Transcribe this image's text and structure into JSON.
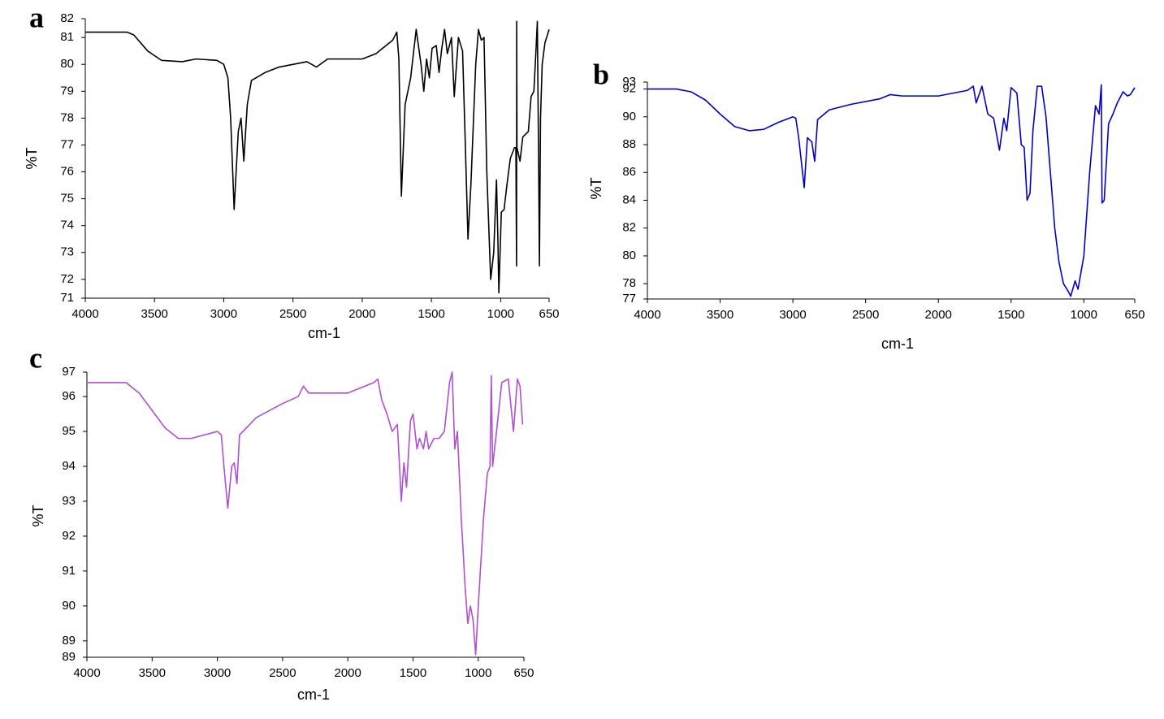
{
  "chart_data": [
    {
      "type": "line",
      "label": "a",
      "ylabel": "%T",
      "xlabel": "cm-1",
      "color": "#000000",
      "xlim": [
        4000,
        650
      ],
      "xticks": [
        4000,
        3500,
        3000,
        2500,
        2000,
        1500,
        1000,
        650
      ],
      "ylim": [
        71.3,
        81.7
      ],
      "yticks": [
        {
          "value": 71.3,
          "label": "71"
        },
        72,
        73,
        74,
        75,
        76,
        77,
        78,
        79,
        80,
        81,
        {
          "value": 81.7,
          "label": "82"
        }
      ],
      "x": [
        4000,
        3800,
        3700,
        3650,
        3550,
        3450,
        3300,
        3200,
        3050,
        3000,
        2970,
        2950,
        2925,
        2895,
        2875,
        2855,
        2830,
        2800,
        2700,
        2600,
        2400,
        2330,
        2250,
        2000,
        1900,
        1780,
        1750,
        1735,
        1717,
        1690,
        1650,
        1610,
        1575,
        1555,
        1535,
        1515,
        1495,
        1465,
        1445,
        1425,
        1405,
        1385,
        1355,
        1335,
        1305,
        1275,
        1255,
        1236,
        1215,
        1180,
        1160,
        1140,
        1120,
        1100,
        1072,
        1050,
        1030,
        1020,
        1013,
        995,
        975,
        955,
        930,
        900,
        890,
        885,
        884,
        882,
        860,
        840,
        800,
        780,
        760,
        745,
        735,
        725,
        720,
        712,
        700,
        680,
        650
      ],
      "values": [
        81.2,
        81.2,
        81.2,
        81.1,
        80.5,
        80.15,
        80.1,
        80.2,
        80.15,
        80.0,
        79.5,
        78.0,
        74.6,
        77.5,
        78.0,
        76.4,
        78.5,
        79.4,
        79.7,
        79.9,
        80.1,
        79.9,
        80.2,
        80.2,
        80.4,
        80.9,
        81.2,
        80.2,
        75.1,
        78.5,
        79.5,
        81.3,
        80.0,
        79.0,
        80.2,
        79.5,
        80.6,
        80.7,
        79.7,
        80.6,
        81.3,
        80.4,
        81.0,
        78.8,
        81.0,
        80.5,
        77.0,
        73.5,
        75.5,
        80.0,
        81.3,
        80.9,
        81.0,
        76.0,
        72.0,
        73.0,
        75.7,
        73.5,
        71.5,
        74.5,
        74.6,
        75.5,
        76.5,
        76.9,
        76.9,
        72.5,
        81.6,
        76.9,
        76.4,
        77.3,
        77.5,
        78.8,
        79.0,
        80.5,
        81.6,
        76.0,
        72.5,
        78.0,
        80.0,
        80.8,
        81.3
      ]
    },
    {
      "type": "line",
      "label": "b",
      "ylabel": "%T",
      "xlabel": "cm-1",
      "color": "#0000cc",
      "xlim": [
        4000,
        650
      ],
      "xticks": [
        4000,
        3500,
        3000,
        2500,
        2000,
        1500,
        1000,
        650
      ],
      "ylim": [
        76.9,
        92.5
      ],
      "yticks": [
        {
          "value": 76.9,
          "label": "77"
        },
        78,
        80,
        82,
        84,
        86,
        88,
        90,
        92,
        {
          "value": 92.5,
          "label": "93"
        }
      ],
      "x": [
        4000,
        3800,
        3700,
        3600,
        3500,
        3400,
        3300,
        3200,
        3100,
        3000,
        2980,
        2960,
        2922,
        2900,
        2870,
        2850,
        2830,
        2750,
        2600,
        2400,
        2330,
        2250,
        2000,
        1800,
        1760,
        1740,
        1700,
        1660,
        1620,
        1580,
        1550,
        1530,
        1500,
        1460,
        1430,
        1410,
        1390,
        1370,
        1350,
        1320,
        1290,
        1260,
        1230,
        1200,
        1170,
        1140,
        1110,
        1090,
        1060,
        1040,
        1000,
        960,
        920,
        895,
        880,
        875,
        860,
        830,
        800,
        770,
        730,
        700,
        680,
        650
      ],
      "values": [
        92.0,
        92.0,
        91.8,
        91.2,
        90.2,
        89.3,
        89.0,
        89.1,
        89.6,
        90.0,
        89.9,
        88.5,
        84.9,
        88.5,
        88.2,
        86.8,
        89.8,
        90.5,
        90.9,
        91.3,
        91.6,
        91.5,
        91.5,
        91.9,
        92.2,
        91.0,
        92.2,
        90.2,
        89.9,
        87.6,
        89.9,
        89.0,
        92.1,
        91.7,
        88.0,
        87.8,
        84.0,
        84.5,
        89.0,
        92.2,
        92.2,
        90.0,
        86.0,
        82.0,
        79.5,
        78.0,
        77.5,
        77.1,
        78.2,
        77.6,
        80.0,
        86.0,
        90.8,
        90.2,
        92.3,
        83.8,
        84.0,
        89.5,
        90.2,
        91.0,
        91.8,
        91.5,
        91.6,
        92.1
      ]
    },
    {
      "type": "line",
      "label": "c",
      "ylabel": "%T",
      "xlabel": "cm-1",
      "color": "#b04fd0",
      "xlim": [
        4000,
        650
      ],
      "xticks": [
        4000,
        3500,
        3000,
        2500,
        2000,
        1500,
        1000,
        650
      ],
      "ylim": [
        88.53,
        96.7
      ],
      "yticks": [
        {
          "value": 88.53,
          "label": "89"
        },
        89,
        90,
        91,
        92,
        93,
        94,
        95,
        96,
        {
          "value": 96.7,
          "label": "97"
        }
      ],
      "x": [
        4000,
        3800,
        3700,
        3600,
        3500,
        3400,
        3300,
        3200,
        3100,
        3000,
        2970,
        2940,
        2920,
        2890,
        2870,
        2850,
        2830,
        2700,
        2500,
        2380,
        2340,
        2300,
        2000,
        1800,
        1770,
        1740,
        1700,
        1660,
        1620,
        1590,
        1570,
        1550,
        1520,
        1500,
        1470,
        1450,
        1420,
        1400,
        1380,
        1340,
        1300,
        1260,
        1220,
        1200,
        1180,
        1160,
        1130,
        1100,
        1080,
        1060,
        1040,
        1020,
        1000,
        960,
        930,
        910,
        900,
        890,
        860,
        820,
        770,
        730,
        700,
        680,
        660
      ],
      "values": [
        96.4,
        96.4,
        96.4,
        96.1,
        95.6,
        95.1,
        94.8,
        94.8,
        94.9,
        95.0,
        94.9,
        93.6,
        92.8,
        94.0,
        94.1,
        93.5,
        94.9,
        95.4,
        95.8,
        96.0,
        96.3,
        96.1,
        96.1,
        96.4,
        96.5,
        95.9,
        95.5,
        95.0,
        95.2,
        93.0,
        94.1,
        93.4,
        95.3,
        95.5,
        94.5,
        94.8,
        94.5,
        95.0,
        94.5,
        94.8,
        94.8,
        95.0,
        96.4,
        96.7,
        94.5,
        95.0,
        92.5,
        90.5,
        89.5,
        90.0,
        89.6,
        88.6,
        90.0,
        92.5,
        93.8,
        94.0,
        96.6,
        94.0,
        95.0,
        96.4,
        96.5,
        95.0,
        96.5,
        96.3,
        95.2
      ]
    }
  ]
}
